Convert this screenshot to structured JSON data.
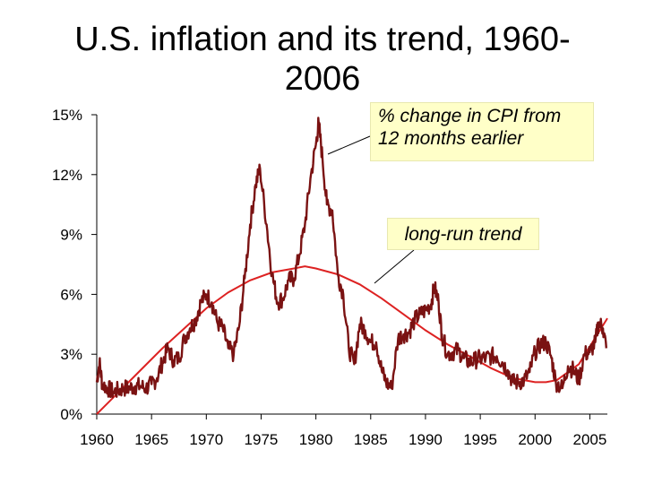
{
  "page": {
    "title": "U.S. inflation and its trend, 1960-2006"
  },
  "annotations": {
    "cpi_label": "% change in CPI from 12 months earlier",
    "trend_label": "long-run trend"
  },
  "colors": {
    "cpi_series": "#7a1212",
    "trend_series": "#dd2222",
    "callout_bg": "#ffffc8"
  },
  "chart_data": {
    "type": "line",
    "title": "U.S. inflation and its trend, 1960-2006",
    "xlabel": "",
    "ylabel": "",
    "xlim": [
      1960,
      2006.6
    ],
    "ylim": [
      0,
      15
    ],
    "x_ticks": [
      "1960",
      "1965",
      "1970",
      "1975",
      "1980",
      "1985",
      "1990",
      "1995",
      "2000",
      "2005"
    ],
    "y_ticks": [
      "0%",
      "3%",
      "6%",
      "9%",
      "12%",
      "15%"
    ],
    "y_tick_values": [
      0,
      3,
      6,
      9,
      12,
      15
    ],
    "grid": false,
    "legend": "none",
    "series": [
      {
        "name": "% change in CPI from 12 months earlier",
        "x": [
          1960.0,
          1960.25,
          1960.5,
          1961.0,
          1961.5,
          1962.0,
          1962.5,
          1963.0,
          1963.5,
          1964.0,
          1964.5,
          1965.0,
          1965.5,
          1966.0,
          1966.5,
          1967.0,
          1967.5,
          1968.0,
          1968.5,
          1969.0,
          1969.5,
          1970.0,
          1970.5,
          1971.0,
          1971.5,
          1972.0,
          1972.5,
          1973.0,
          1973.5,
          1974.0,
          1974.5,
          1974.9,
          1975.5,
          1976.0,
          1976.5,
          1977.0,
          1977.5,
          1978.0,
          1978.5,
          1979.0,
          1979.5,
          1980.0,
          1980.25,
          1980.6,
          1981.0,
          1981.5,
          1982.0,
          1982.5,
          1983.0,
          1983.5,
          1984.0,
          1984.5,
          1985.0,
          1985.5,
          1986.0,
          1986.4,
          1986.9,
          1987.5,
          1988.0,
          1988.5,
          1989.0,
          1989.5,
          1990.0,
          1990.5,
          1990.8,
          1991.2,
          1991.5,
          1992.0,
          1992.5,
          1993.0,
          1993.5,
          1994.0,
          1994.5,
          1995.0,
          1995.5,
          1996.0,
          1996.5,
          1997.0,
          1997.5,
          1998.0,
          1998.5,
          1999.0,
          1999.5,
          2000.0,
          2000.5,
          2001.0,
          2001.5,
          2001.9,
          2002.5,
          2003.0,
          2003.5,
          2004.0,
          2004.5,
          2005.0,
          2005.5,
          2005.8,
          2006.2,
          2006.5
        ],
        "y": [
          1.6,
          2.6,
          1.5,
          1.3,
          1.1,
          1.2,
          1.3,
          1.3,
          1.4,
          1.4,
          1.3,
          1.5,
          1.8,
          2.6,
          3.3,
          2.7,
          2.8,
          3.8,
          4.3,
          4.7,
          5.6,
          6.0,
          5.6,
          4.6,
          4.3,
          3.3,
          3.0,
          4.4,
          6.8,
          9.5,
          11.5,
          12.3,
          9.5,
          7.0,
          5.6,
          5.8,
          6.7,
          6.8,
          8.0,
          9.5,
          11.8,
          13.5,
          14.6,
          12.8,
          10.5,
          10.2,
          7.0,
          6.0,
          3.3,
          2.5,
          4.5,
          4.2,
          3.6,
          3.6,
          2.2,
          1.6,
          1.3,
          3.8,
          4.0,
          4.1,
          4.7,
          5.0,
          5.2,
          5.5,
          6.4,
          5.6,
          4.0,
          3.0,
          3.1,
          3.2,
          2.8,
          2.6,
          2.7,
          2.8,
          2.8,
          2.9,
          2.9,
          2.6,
          2.2,
          1.6,
          1.6,
          1.7,
          2.1,
          3.1,
          3.5,
          3.6,
          2.8,
          1.6,
          1.3,
          2.4,
          2.2,
          1.7,
          3.0,
          3.1,
          3.6,
          4.6,
          4.3,
          3.3
        ]
      },
      {
        "name": "long-run trend",
        "x": [
          1960,
          1962,
          1964,
          1966,
          1968,
          1970,
          1972,
          1974,
          1976,
          1978,
          1979,
          1980,
          1982,
          1984,
          1986,
          1988,
          1990,
          1992,
          1994,
          1996,
          1998,
          2000,
          2001,
          2002,
          2004,
          2006.6
        ],
        "y": [
          0.0,
          1.1,
          2.2,
          3.3,
          4.3,
          5.3,
          6.1,
          6.7,
          7.1,
          7.3,
          7.4,
          7.3,
          7.0,
          6.5,
          5.8,
          5.0,
          4.2,
          3.5,
          2.9,
          2.3,
          1.8,
          1.6,
          1.6,
          1.7,
          2.5,
          4.8
        ]
      }
    ]
  }
}
